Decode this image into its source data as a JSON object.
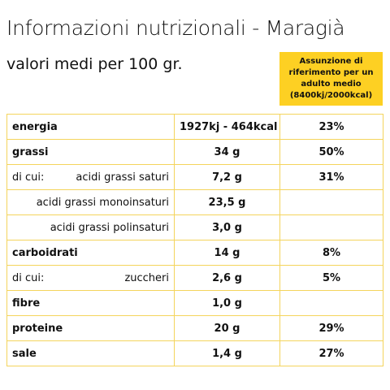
{
  "header": {
    "title": "Informazioni nutrizionali - Maragià",
    "subtitle": "valori medi per 100 gr.",
    "reference_note": [
      "Assunzione di",
      "riferimento per un",
      "adulto medio",
      "(8400kj/2000kcal)"
    ]
  },
  "table": {
    "rows": [
      {
        "label": "energia",
        "value": "1927kj - 464kcal",
        "percent": "23%",
        "main": true
      },
      {
        "label": "grassi",
        "value": "34 g",
        "percent": "50%",
        "main": true
      },
      {
        "prefix": "di cui:",
        "label": "acidi grassi saturi",
        "value": "7,2 g",
        "percent": "31%",
        "main": false
      },
      {
        "label": "acidi grassi monoinsaturi",
        "value": "23,5 g",
        "main": false
      },
      {
        "label": "acidi grassi polinsaturi",
        "value": "3,0 g",
        "main": false
      },
      {
        "label": "carboidrati",
        "value": "14 g",
        "percent": "8%",
        "main": true
      },
      {
        "prefix": "di cui:",
        "label": "zuccheri",
        "value": "2,6 g",
        "percent": "5%",
        "main": false
      },
      {
        "label": "fibre",
        "value": "1,0 g",
        "main": true
      },
      {
        "label": "proteine",
        "value": "20 g",
        "percent": "29%",
        "main": true
      },
      {
        "label": "sale",
        "value": "1,4 g",
        "percent": "27%",
        "main": true
      }
    ]
  }
}
